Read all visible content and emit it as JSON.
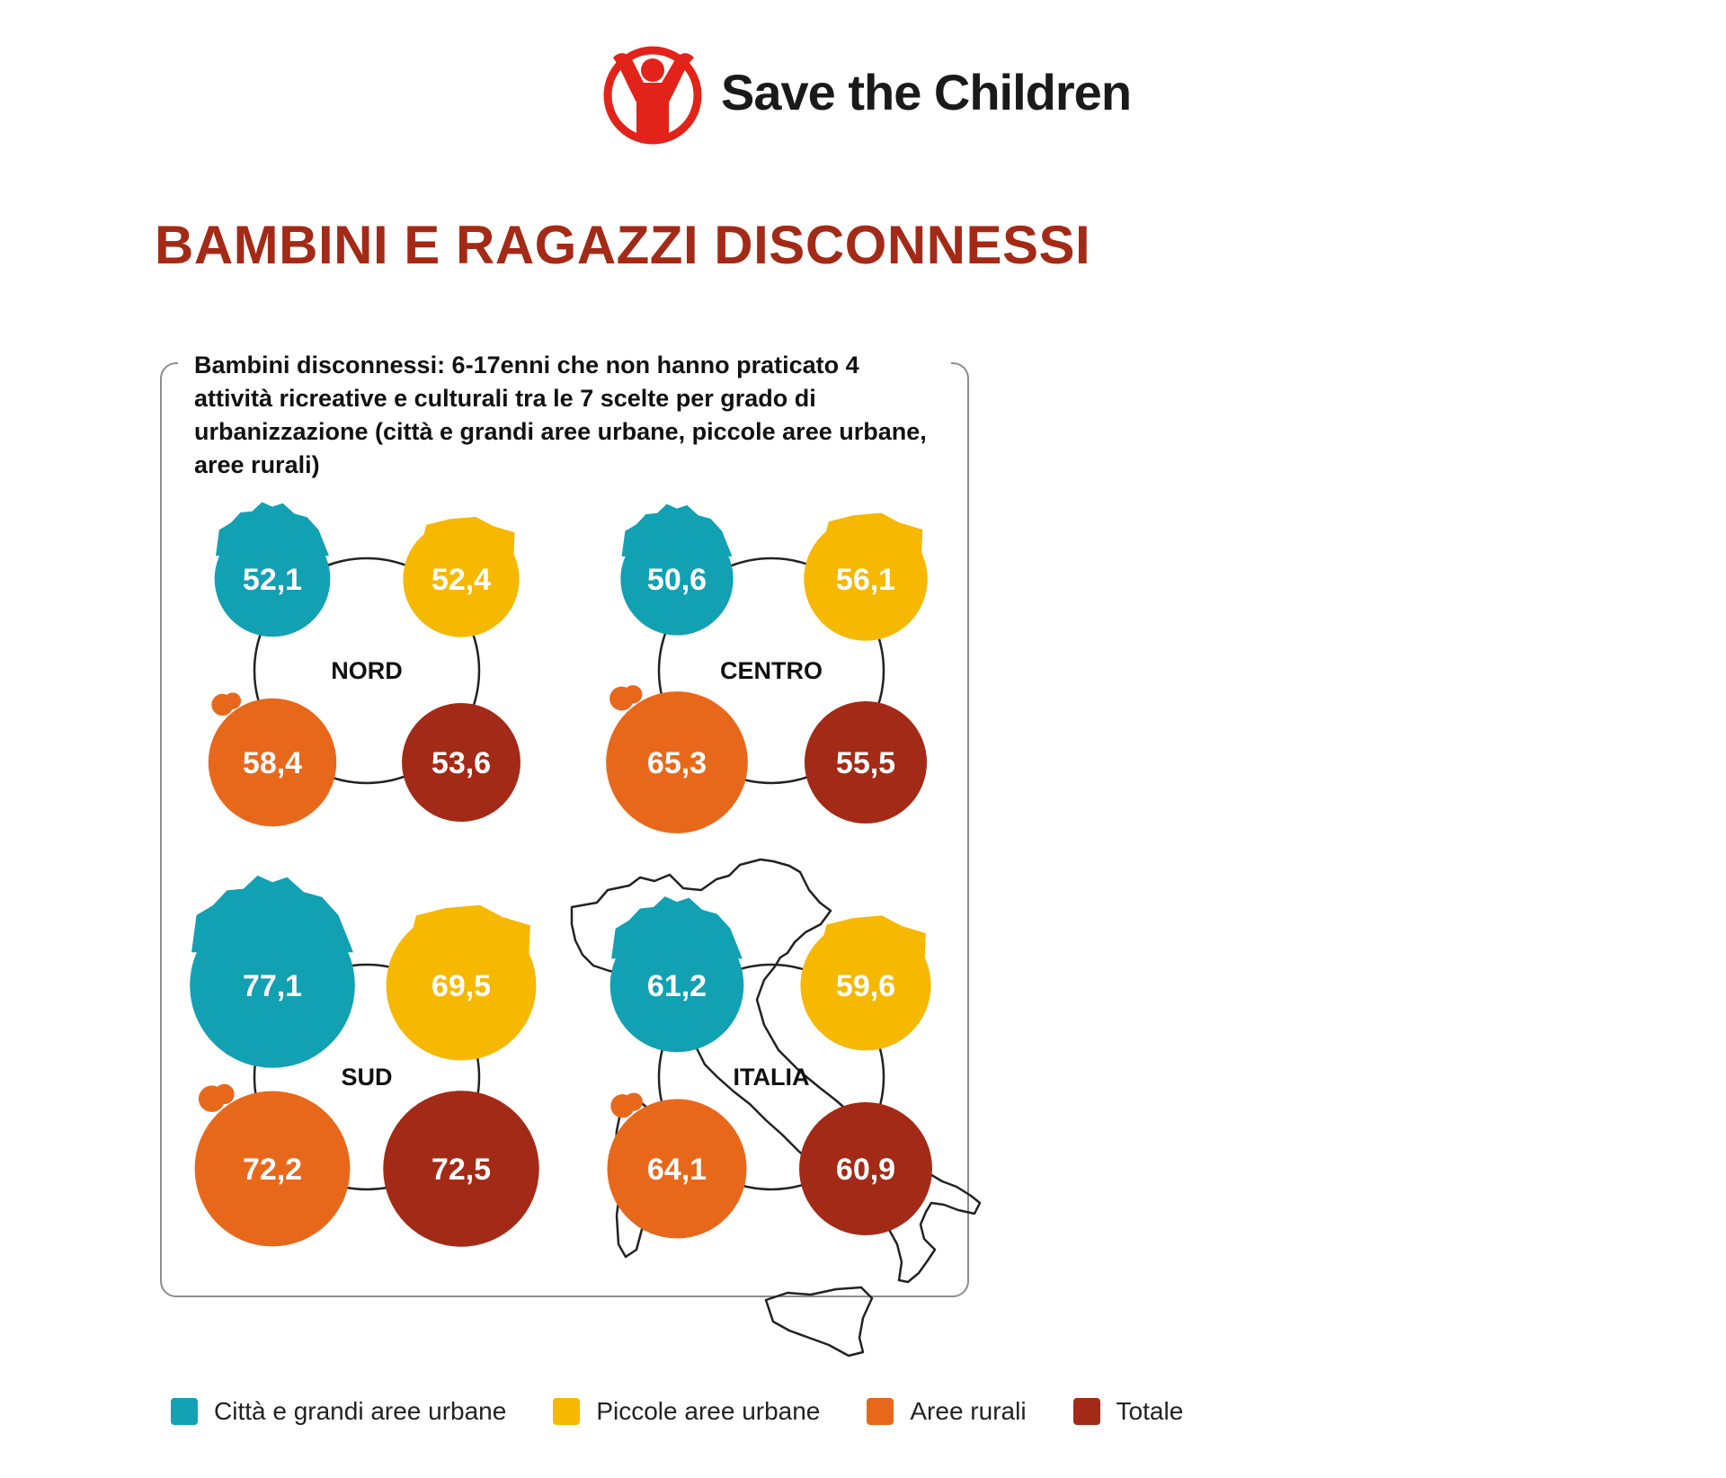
{
  "header": {
    "brand": "Save the Children",
    "title": "BAMBINI E RAGAZZI DISCONNESSI"
  },
  "colors": {
    "brand_red": "#e2231a",
    "title_red": "#a32a16",
    "city": "#12a0b3",
    "small_urban": "#f6b800",
    "rural": "#e8681b",
    "total": "#a32a16"
  },
  "chart_data": {
    "type": "bubble-groups",
    "title": "Bambini disconnessi: 6-17enni che non hanno praticato 4 attività ricreative e culturali tra le 7 scelte per grado di urbanizzazione (città e grandi aree urbane, piccole aree urbane, aree rurali)",
    "series": [
      {
        "name": "Città e grandi aree urbane",
        "color": "#12a0b3"
      },
      {
        "name": "Piccole aree urbane",
        "color": "#f6b800"
      },
      {
        "name": "Aree rurali",
        "color": "#e8681b"
      },
      {
        "name": "Totale",
        "color": "#a32a16"
      }
    ],
    "groups": [
      {
        "name": "NORD",
        "values": [
          52.1,
          52.4,
          58.4,
          53.6
        ],
        "labels": [
          "52,1",
          "52,4",
          "58,4",
          "53,6"
        ]
      },
      {
        "name": "CENTRO",
        "values": [
          50.6,
          56.1,
          65.3,
          55.5
        ],
        "labels": [
          "50,6",
          "56,1",
          "65,3",
          "55,5"
        ]
      },
      {
        "name": "SUD",
        "values": [
          77.1,
          69.5,
          72.2,
          72.5
        ],
        "labels": [
          "77,1",
          "69,5",
          "72,2",
          "72,5"
        ]
      },
      {
        "name": "ITALIA",
        "values": [
          61.2,
          59.6,
          64.1,
          60.9
        ],
        "labels": [
          "61,2",
          "59,6",
          "64,1",
          "60,9"
        ]
      }
    ]
  },
  "legend": {
    "items": [
      {
        "label": "Città e grandi aree urbane",
        "color": "#12a0b3"
      },
      {
        "label": "Piccole aree urbane",
        "color": "#f6b800"
      },
      {
        "label": "Aree rurali",
        "color": "#e8681b"
      },
      {
        "label": "Totale",
        "color": "#a32a16"
      }
    ]
  }
}
